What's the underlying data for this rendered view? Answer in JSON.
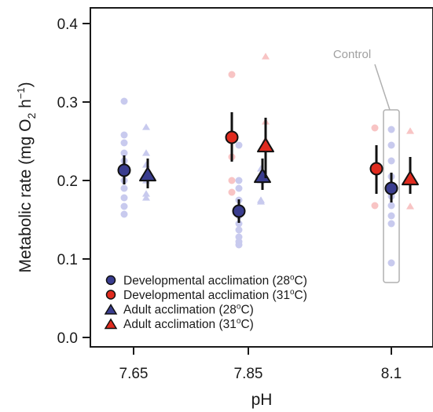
{
  "chart_data": {
    "type": "scatter",
    "xlabel": "pH",
    "ylabel": {
      "main": "Metabolic rate (mg O",
      "sub": "2",
      "tail": " h",
      "sup": "−1",
      "end": ")"
    },
    "categories": [
      "7.65",
      "7.85",
      "8.1"
    ],
    "ylim": [
      0,
      0.42
    ],
    "yticks": [
      0.0,
      0.1,
      0.2,
      0.3,
      0.4
    ],
    "ytick_labels": [
      "0.0",
      "0.1",
      "0.2",
      "0.3",
      "0.4"
    ],
    "colors": {
      "blue": "#3a3d8f",
      "red": "#e02b1f",
      "light_blue": "#c8caee",
      "light_red": "#f8c4c4",
      "annot": "#b0b0b0"
    },
    "series": [
      {
        "key": "dev28",
        "marker": "circle",
        "color": "#3a3d8f",
        "raw_color": "#c8caee",
        "mean": [
          {
            "x": "7.65",
            "y": 0.213,
            "lo": 0.195,
            "hi": 0.232
          },
          {
            "x": "7.85",
            "y": 0.161,
            "lo": 0.146,
            "hi": 0.176
          },
          {
            "x": "8.1",
            "y": 0.19,
            "lo": 0.172,
            "hi": 0.21
          }
        ],
        "raw": [
          {
            "x": "7.65",
            "y": [
              0.301,
              0.258,
              0.248,
              0.235,
              0.225,
              0.21,
              0.2,
              0.19,
              0.178,
              0.167,
              0.157
            ]
          },
          {
            "x": "7.85",
            "y": [
              0.245,
              0.2,
              0.19,
              0.175,
              0.165,
              0.155,
              0.145,
              0.137,
              0.128,
              0.122,
              0.118
            ]
          },
          {
            "x": "8.1",
            "y": [
              0.265,
              0.245,
              0.225,
              0.205,
              0.19,
              0.18,
              0.168,
              0.155,
              0.145,
              0.095
            ]
          }
        ]
      },
      {
        "key": "dev31",
        "marker": "circle",
        "color": "#e02b1f",
        "raw_color": "#f8c4c4",
        "mean": [
          {
            "x": "7.85",
            "y": 0.255,
            "lo": 0.224,
            "hi": 0.287
          },
          {
            "x": "8.1",
            "y": 0.215,
            "lo": 0.183,
            "hi": 0.245
          }
        ],
        "raw": [
          {
            "x": "7.85",
            "y": [
              0.335,
              0.23,
              0.2,
              0.185
            ]
          },
          {
            "x": "8.1",
            "y": [
              0.267,
              0.168
            ]
          }
        ]
      },
      {
        "key": "adult28",
        "marker": "triangle",
        "color": "#3a3d8f",
        "raw_color": "#c8caee",
        "mean": [
          {
            "x": "7.65",
            "y": 0.208,
            "lo": 0.19,
            "hi": 0.228
          },
          {
            "x": "7.85",
            "y": 0.206,
            "lo": 0.188,
            "hi": 0.228
          }
        ],
        "raw": [
          {
            "x": "7.65",
            "y": [
              0.268,
              0.235,
              0.22,
              0.2,
              0.183,
              0.178
            ]
          },
          {
            "x": "7.85",
            "y": [
              0.215,
              0.2,
              0.175,
              0.173
            ]
          }
        ]
      },
      {
        "key": "adult31",
        "marker": "triangle",
        "color": "#e02b1f",
        "raw_color": "#f8c4c4",
        "mean": [
          {
            "x": "7.85",
            "y": 0.245,
            "lo": 0.203,
            "hi": 0.28
          },
          {
            "x": "8.1",
            "y": 0.203,
            "lo": 0.183,
            "hi": 0.23
          }
        ],
        "raw": [
          {
            "x": "7.85",
            "y": [
              0.358,
              0.275,
              0.252
            ]
          },
          {
            "x": "8.1",
            "y": [
              0.263,
              0.167
            ]
          }
        ]
      }
    ],
    "legend": {
      "position": "bottom-left",
      "entries": [
        {
          "marker": "circle",
          "color": "#3a3d8f",
          "label": "Developmental acclimation (28",
          "unit": "C)"
        },
        {
          "marker": "circle",
          "color": "#e02b1f",
          "label": "Developmental acclimation (31",
          "unit": "C)"
        },
        {
          "marker": "triangle",
          "color": "#3a3d8f",
          "label": "Adult acclimation (28",
          "unit": "C)"
        },
        {
          "marker": "triangle",
          "color": "#e02b1f",
          "label": "Adult acclimation (31",
          "unit": "C)"
        }
      ]
    },
    "annotation": {
      "text": "Control",
      "x": "8.1",
      "y_range": [
        0.07,
        0.29
      ]
    }
  }
}
